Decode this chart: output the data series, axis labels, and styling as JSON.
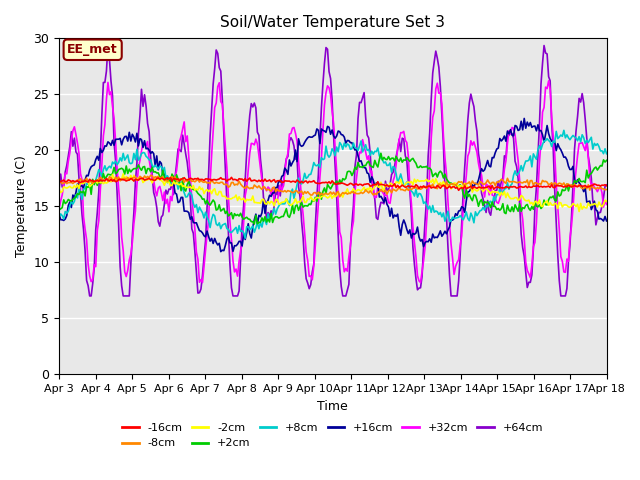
{
  "title": "Soil/Water Temperature Set 3",
  "xlabel": "Time",
  "ylabel": "Temperature (C)",
  "ylim": [
    0,
    30
  ],
  "xlim": [
    0,
    15
  ],
  "xtick_labels": [
    "Apr 3",
    "Apr 4",
    "Apr 5",
    "Apr 6",
    "Apr 7",
    "Apr 8",
    "Apr 9",
    "Apr 10",
    "Apr 11",
    "Apr 12",
    "Apr 13",
    "Apr 14",
    "Apr 15",
    "Apr 16",
    "Apr 17",
    "Apr 18"
  ],
  "ytick_values": [
    0,
    5,
    10,
    15,
    20,
    25,
    30
  ],
  "annotation_text": "EE_met",
  "annotation_bg": "#ffffcc",
  "annotation_border": "#8b0000",
  "annotation_text_color": "#8b0000",
  "series": [
    {
      "label": "-16cm",
      "color": "#ff0000"
    },
    {
      "label": "-8cm",
      "color": "#ff8800"
    },
    {
      "label": "-2cm",
      "color": "#ffff00"
    },
    {
      "label": "+2cm",
      "color": "#00cc00"
    },
    {
      "label": "+8cm",
      "color": "#00cccc"
    },
    {
      "label": "+16cm",
      "color": "#000099"
    },
    {
      "label": "+32cm",
      "color": "#ff00ff"
    },
    {
      "label": "+64cm",
      "color": "#8800cc"
    }
  ],
  "bg_color": "#e8e8e8",
  "fig_color": "#ffffff",
  "n_points": 360,
  "x_days": 15
}
